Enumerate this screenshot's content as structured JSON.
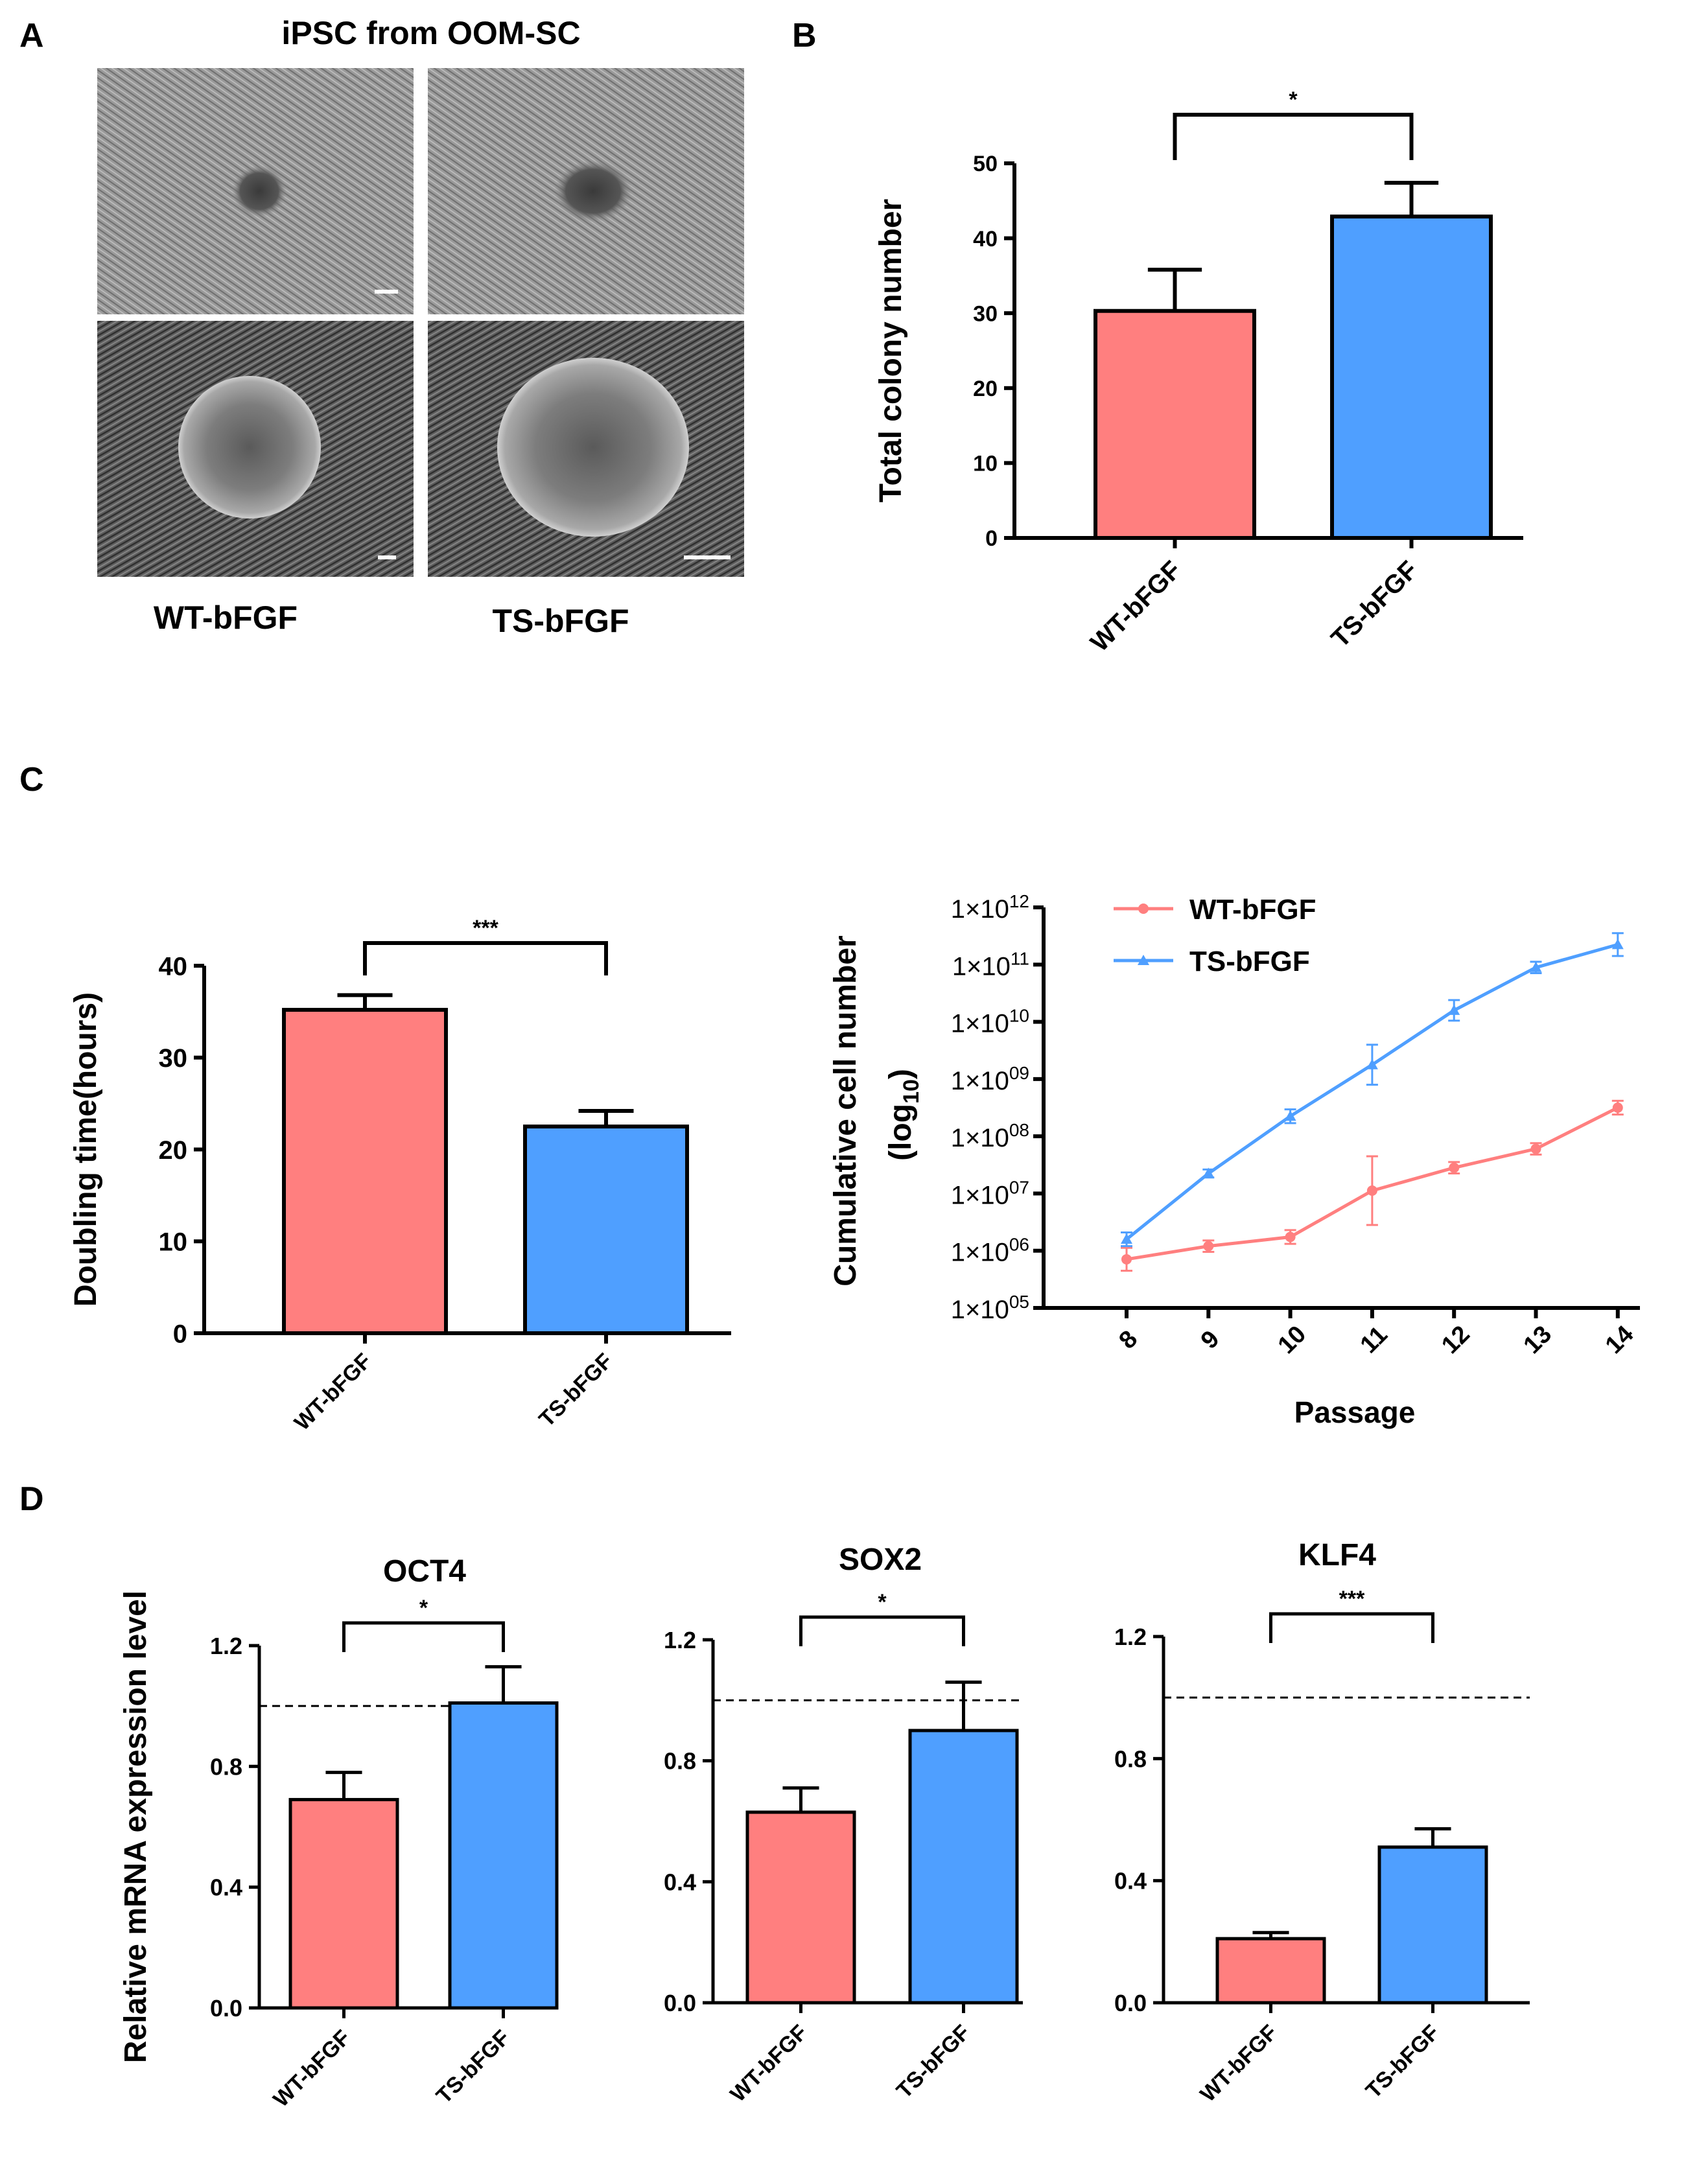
{
  "panels": {
    "A": {
      "letter": "A",
      "title": "iPSC from OOM-SC",
      "col_labels": [
        "WT-bFGF",
        "TS-bFGF"
      ],
      "image_description_none": ""
    },
    "B": {
      "letter": "B"
    },
    "C": {
      "letter": "C"
    },
    "D": {
      "letter": "D"
    }
  },
  "colors": {
    "wt": "#FF7F7F",
    "ts": "#4F9FFF",
    "axis": "#000000"
  },
  "chart_data": [
    {
      "id": "B",
      "type": "bar",
      "title": "",
      "ylabel": "Total colony number",
      "xlabel": "",
      "categories": [
        "WT-bFGF",
        "TS-bFGF"
      ],
      "values": [
        30.3,
        42.9
      ],
      "errors": [
        5.5,
        4.5
      ],
      "ylim": [
        0,
        50
      ],
      "yticks": [
        "0",
        "10",
        "20",
        "30",
        "40",
        "50"
      ],
      "significance": "*"
    },
    {
      "id": "C1",
      "type": "bar",
      "title": "",
      "ylabel": "Doubling time(hours)",
      "xlabel": "",
      "categories": [
        "WT-bFGF",
        "TS-bFGF"
      ],
      "values": [
        35.2,
        22.5
      ],
      "errors": [
        1.6,
        1.7
      ],
      "ylim": [
        0,
        40
      ],
      "yticks": [
        "0",
        "10",
        "20",
        "30",
        "40"
      ],
      "significance": "***"
    },
    {
      "id": "C2",
      "type": "line",
      "title": "",
      "ylabel": "Cumulative cell number",
      "ylabel2": "(log",
      "ylabel2_sub": "10",
      "ylabel2_end": ")",
      "xlabel": "Passage",
      "x": [
        8,
        9,
        10,
        11,
        12,
        13,
        14
      ],
      "xticks": [
        "8",
        "9",
        "10",
        "11",
        "12",
        "13",
        "14"
      ],
      "ylim_log10": [
        5,
        12
      ],
      "ytick_base": "1×10",
      "ytick_exps": [
        "05",
        "06",
        "07",
        "08",
        "09",
        "10",
        "11",
        "12"
      ],
      "legend": "top-left",
      "series": [
        {
          "name": "WT-bFGF",
          "marker": "circle",
          "log10_values": [
            5.85,
            6.08,
            6.24,
            7.05,
            7.45,
            7.78,
            8.5
          ],
          "err": [
            0.2,
            0.1,
            0.12,
            0.6,
            0.1,
            0.1,
            0.12
          ]
        },
        {
          "name": "TS-bFGF",
          "marker": "triangle",
          "log10_values": [
            6.2,
            7.35,
            8.35,
            9.25,
            10.2,
            10.95,
            11.35
          ],
          "err": [
            0.12,
            0.07,
            0.12,
            0.35,
            0.18,
            0.1,
            0.2
          ]
        }
      ]
    },
    {
      "id": "D1",
      "type": "bar",
      "title": "OCT4",
      "ylabel": "Relative mRNA expression level",
      "xlabel": "",
      "categories": [
        "WT-bFGF",
        "TS-bFGF"
      ],
      "values": [
        0.69,
        1.01
      ],
      "errors": [
        0.09,
        0.12
      ],
      "ylim": [
        0,
        1.2
      ],
      "yticks": [
        "0.0",
        "0.4",
        "0.8",
        "1.2"
      ],
      "reference_line": 1.0,
      "significance": "*"
    },
    {
      "id": "D2",
      "type": "bar",
      "title": "SOX2",
      "ylabel": "",
      "xlabel": "",
      "categories": [
        "WT-bFGF",
        "TS-bFGF"
      ],
      "values": [
        0.63,
        0.9
      ],
      "errors": [
        0.08,
        0.16
      ],
      "ylim": [
        0,
        1.2
      ],
      "yticks": [
        "0.0",
        "0.4",
        "0.8",
        "1.2"
      ],
      "reference_line": 1.0,
      "significance": "*"
    },
    {
      "id": "D3",
      "type": "bar",
      "title": "KLF4",
      "ylabel": "",
      "xlabel": "",
      "categories": [
        "WT-bFGF",
        "TS-bFGF"
      ],
      "values": [
        0.21,
        0.51
      ],
      "errors": [
        0.02,
        0.06
      ],
      "ylim": [
        0,
        1.2
      ],
      "yticks": [
        "0.0",
        "0.4",
        "0.8",
        "1.2"
      ],
      "reference_line": 1.0,
      "significance": "***"
    }
  ]
}
